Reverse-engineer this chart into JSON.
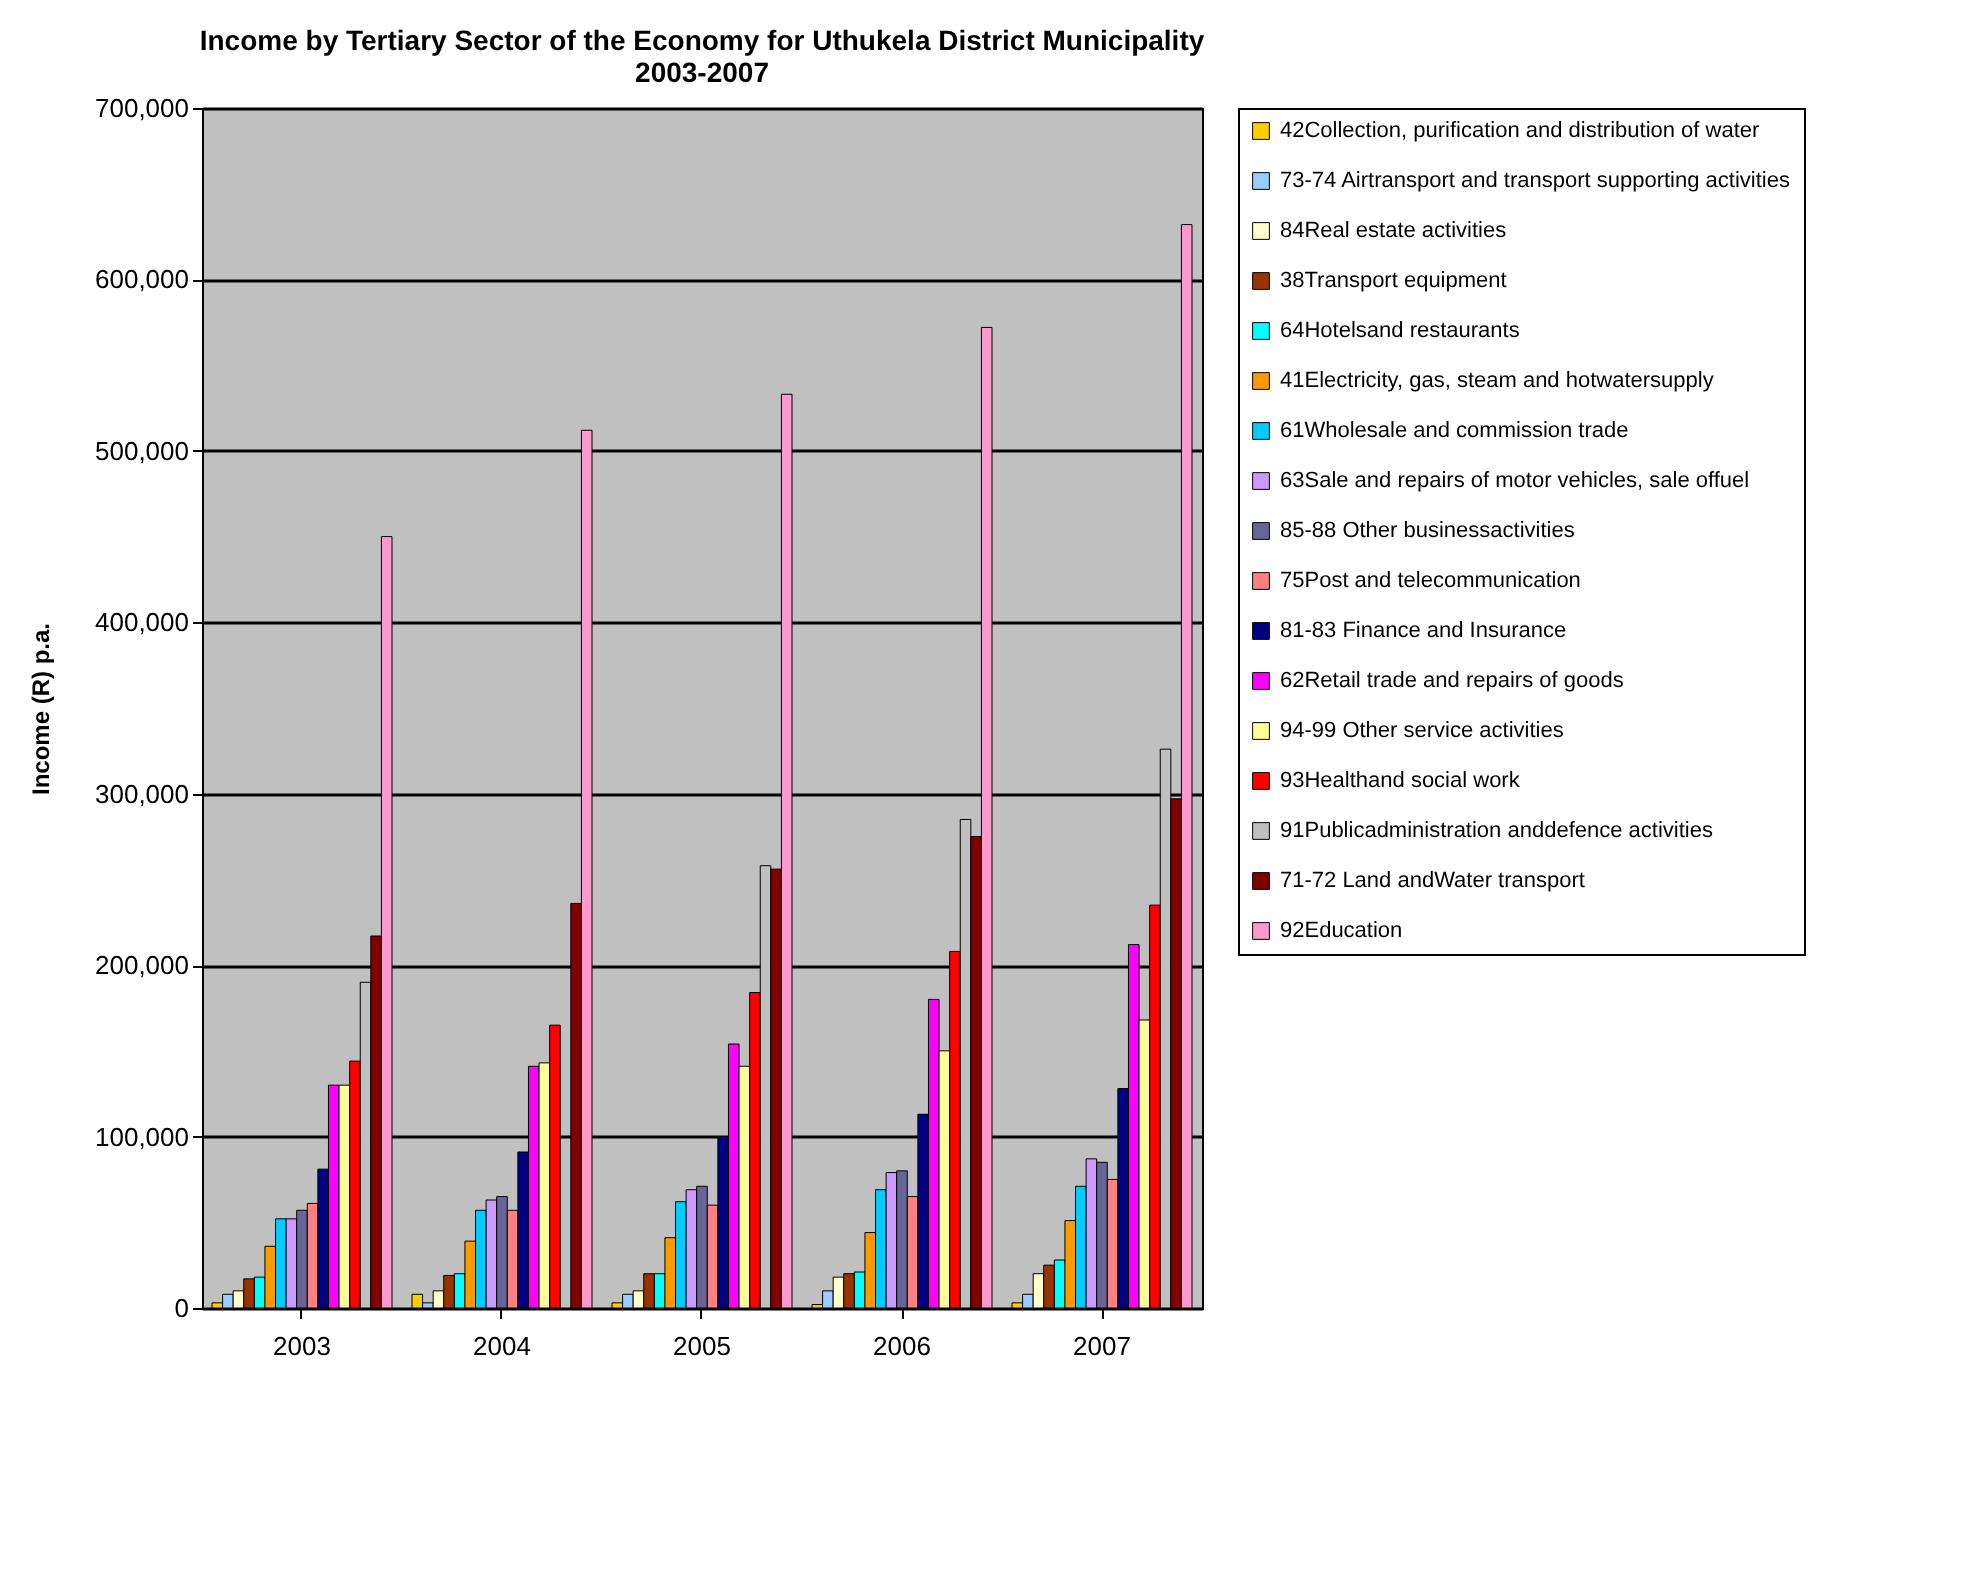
{
  "chart_data": {
    "type": "bar",
    "title": "Income by Tertiary Sector of the Economy for Uthukela District Municipality 2003-2007",
    "ylabel": "Income (R) p.a.",
    "categories": [
      "2003",
      "2004",
      "2005",
      "2006",
      "2007"
    ],
    "series": [
      {
        "name": "42Collection, purification and distribution of water",
        "color": "#ffcc00",
        "values": [
          3000,
          8000,
          3000,
          2000,
          3000
        ]
      },
      {
        "name": "73-74 Airtransport and transport supporting activities",
        "color": "#99ccff",
        "values": [
          8000,
          3000,
          8000,
          10000,
          8000
        ]
      },
      {
        "name": "84Real estate activities",
        "color": "#ffffcc",
        "values": [
          10000,
          10000,
          10000,
          18000,
          20000
        ]
      },
      {
        "name": "38Transport equipment",
        "color": "#993300",
        "values": [
          17000,
          19000,
          20000,
          20000,
          25000
        ]
      },
      {
        "name": "64Hotelsand restaurants",
        "color": "#00ffff",
        "values": [
          18000,
          20000,
          20000,
          21000,
          28000
        ]
      },
      {
        "name": "41Electricity, gas, steam and hotwatersupply",
        "color": "#ff9900",
        "values": [
          36000,
          39000,
          41000,
          44000,
          51000
        ]
      },
      {
        "name": "61Wholesale and commission trade",
        "color": "#00ccff",
        "values": [
          52000,
          57000,
          62000,
          69000,
          71000
        ]
      },
      {
        "name": "63Sale and repairs of motor vehicles, sale offuel",
        "color": "#cc99ff",
        "values": [
          52000,
          63000,
          69000,
          79000,
          87000
        ]
      },
      {
        "name": "85-88 Other businessactivities",
        "color": "#666699",
        "values": [
          57000,
          65000,
          71000,
          80000,
          85000
        ]
      },
      {
        "name": "75Post and telecommunication",
        "color": "#ff8080",
        "values": [
          61000,
          57000,
          60000,
          65000,
          75000
        ]
      },
      {
        "name": "81-83 Finance and Insurance",
        "color": "#000080",
        "values": [
          81000,
          91000,
          100000,
          113000,
          128000
        ]
      },
      {
        "name": "62Retail trade and repairs of goods",
        "color": "#ff00ff",
        "values": [
          130000,
          141000,
          154000,
          180000,
          212000
        ]
      },
      {
        "name": "94-99 Other service activities",
        "color": "#ffff99",
        "values": [
          130000,
          143000,
          141000,
          150000,
          168000
        ]
      },
      {
        "name": "93Healthand social work",
        "color": "#ff0000",
        "values": [
          144000,
          165000,
          184000,
          208000,
          235000
        ]
      },
      {
        "name": "91Publicadministration anddefence activities",
        "color": "#c0c0c0",
        "values": [
          190000,
          null,
          258000,
          285000,
          326000
        ]
      },
      {
        "name": "71-72 Land andWater transport",
        "color": "#800000",
        "values": [
          217000,
          236000,
          256000,
          275000,
          297000
        ]
      },
      {
        "name": "92Education",
        "color": "#ff99cc",
        "values": [
          450000,
          512000,
          533000,
          572000,
          632000
        ]
      }
    ],
    "ylim": [
      0,
      700000
    ],
    "yticks": [
      0,
      {
        "value": 100000,
        "label": "100,000"
      },
      {
        "value": 200000,
        "label": "200,000"
      },
      {
        "value": 300000,
        "label": "300,000"
      },
      {
        "value": 400000,
        "label": "400,000"
      },
      {
        "value": 500000,
        "label": "500,000"
      },
      {
        "value": 600000,
        "label": "600,000"
      },
      {
        "value": 700000,
        "label": "700,000"
      }
    ],
    "grid": "y",
    "legend": "right"
  }
}
